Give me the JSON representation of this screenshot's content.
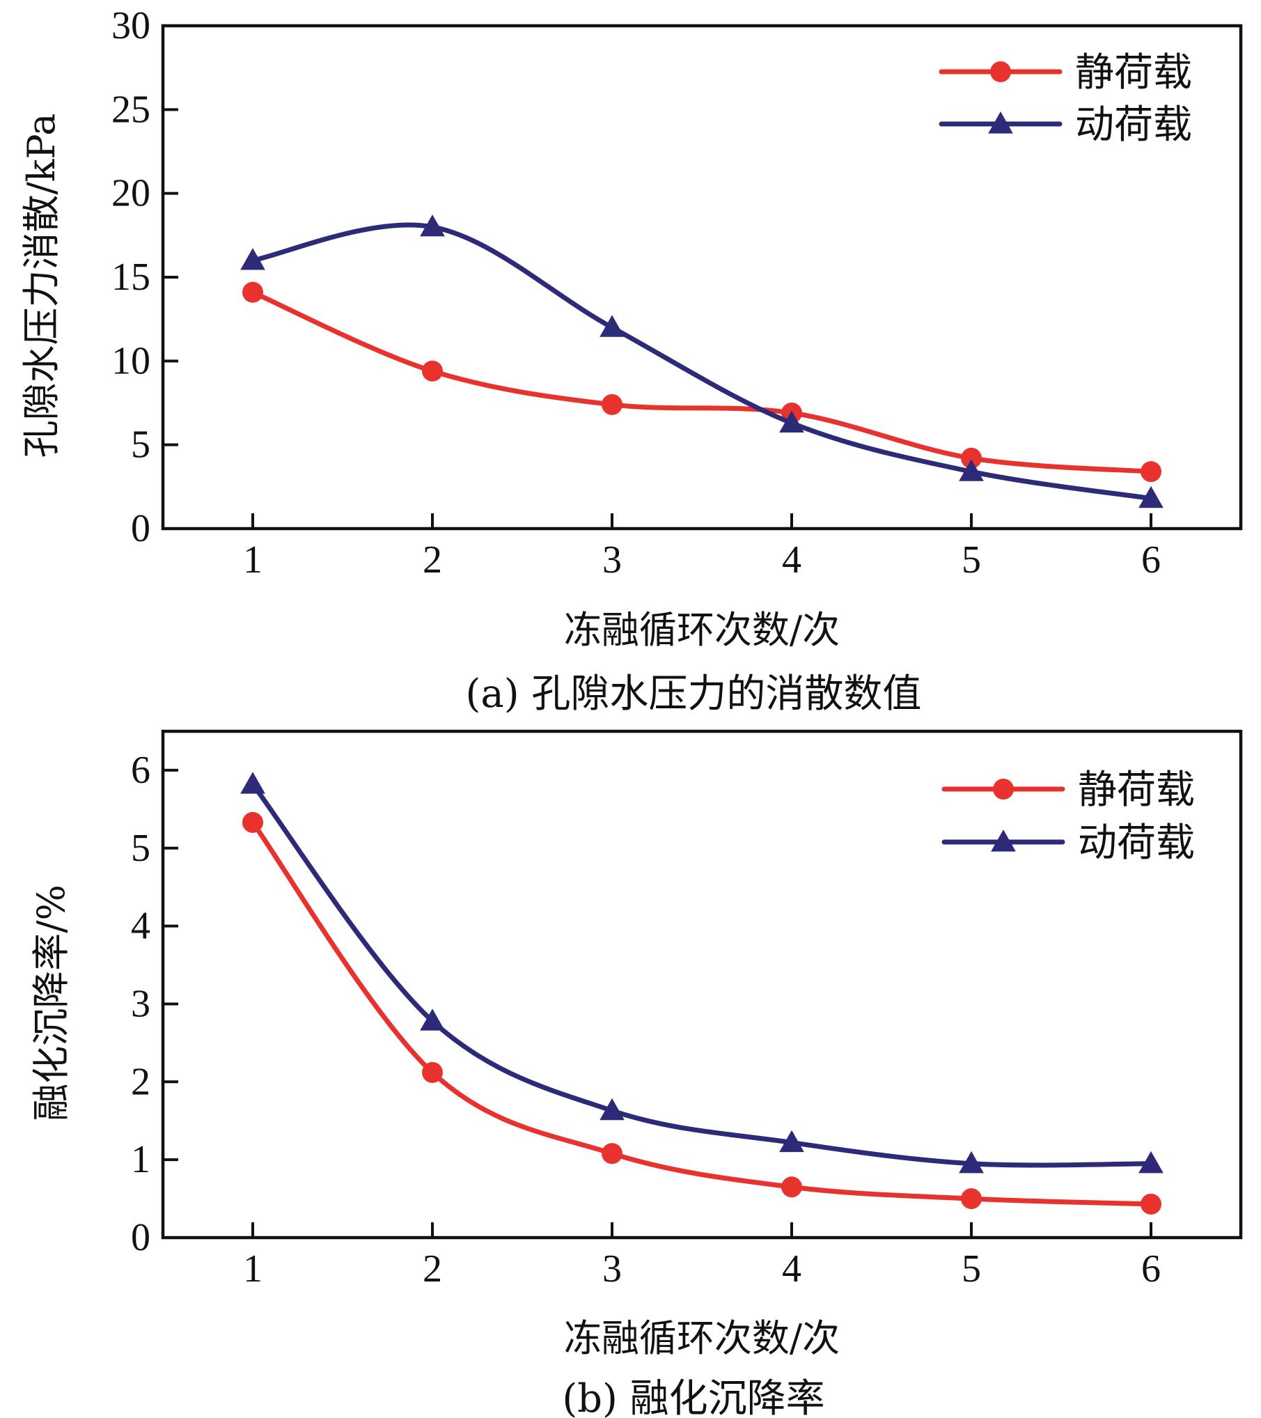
{
  "chart_data": [
    {
      "type": "line",
      "panel": "a",
      "caption": "(a) 孔隙水压力的消散数值",
      "xlabel": "冻融循环次数/次",
      "ylabel": "孔隙水压力消散/kPa",
      "categories": [
        1,
        2,
        3,
        4,
        5,
        6
      ],
      "xlim": [
        0.5,
        6.5
      ],
      "ylim": [
        0,
        30
      ],
      "yticks": [
        0,
        5,
        10,
        15,
        20,
        25,
        30
      ],
      "legend_position": "top-right",
      "series": [
        {
          "name": "静荷载",
          "marker": "circle",
          "color": "#e8322e",
          "values": [
            14.1,
            9.4,
            7.4,
            6.9,
            4.2,
            3.4
          ]
        },
        {
          "name": "动荷载",
          "marker": "triangle",
          "color": "#2e2a7a",
          "values": [
            16.0,
            18.0,
            12.0,
            6.3,
            3.4,
            1.8
          ]
        }
      ]
    },
    {
      "type": "line",
      "panel": "b",
      "caption": "(b) 融化沉降率",
      "xlabel": "冻融循环次数/次",
      "ylabel": "融化沉降率/%",
      "categories": [
        1,
        2,
        3,
        4,
        5,
        6
      ],
      "xlim": [
        0.5,
        6.5
      ],
      "ylim": [
        0,
        6.5
      ],
      "yticks": [
        0,
        1,
        2,
        3,
        4,
        5,
        6
      ],
      "legend_position": "top-right",
      "series": [
        {
          "name": "静荷载",
          "marker": "circle",
          "color": "#e8322e",
          "values": [
            5.33,
            2.12,
            1.08,
            0.65,
            0.5,
            0.43
          ]
        },
        {
          "name": "动荷载",
          "marker": "triangle",
          "color": "#2e2a7a",
          "values": [
            5.82,
            2.78,
            1.63,
            1.22,
            0.95,
            0.95
          ]
        }
      ]
    }
  ]
}
